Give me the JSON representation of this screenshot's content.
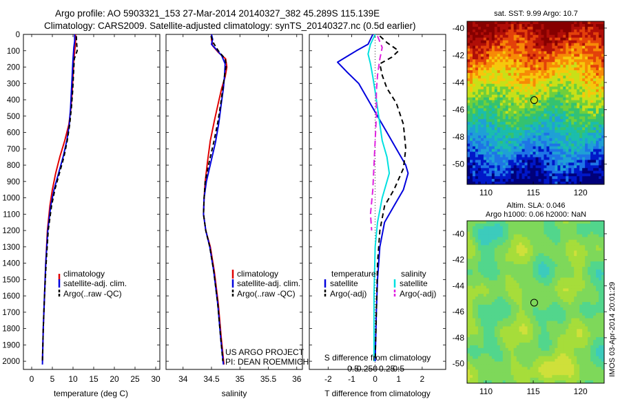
{
  "header": {
    "line1": "Argo profile: AO 5903321_153 27-Mar-2014 20140327_382 45.289S 115.139E",
    "line2": "Climatology: CARS2009. Satellite-adjusted climatology: synTS_20140327.nc (0.5d earlier)"
  },
  "depth_ticks": [
    "0",
    "100",
    "200",
    "300",
    "400",
    "500",
    "600",
    "700",
    "800",
    "900",
    "1000",
    "1100",
    "1200",
    "1300",
    "1400",
    "1500",
    "1600",
    "1700",
    "1800",
    "1900",
    "2000"
  ],
  "colors": {
    "climatology": "#e00000",
    "satellite": "#0000dd",
    "argo": "#000000",
    "s_satellite": "#00e0e0",
    "s_argo": "#e020e0"
  },
  "chart_data": [
    {
      "type": "line",
      "xlabel": "temperature (deg C)",
      "ylabel": "",
      "xlim": [
        -2,
        31
      ],
      "ylim": [
        0,
        2050
      ],
      "xticks": [
        0,
        5,
        10,
        15,
        20,
        25,
        30
      ],
      "xtick_labels": [
        "0",
        "5",
        "10",
        "15",
        "20",
        "25",
        "30"
      ],
      "legend": {
        "placement": "lower-left",
        "entries": [
          "climatology",
          "satellite-adj. clim.",
          "Argo(..raw -QC)"
        ]
      },
      "series": [
        {
          "name": "climatology",
          "color": "#e00000",
          "dash": "",
          "points": [
            [
              10.6,
              0
            ],
            [
              10.6,
              40
            ],
            [
              10.5,
              80
            ],
            [
              10.2,
              150
            ],
            [
              10.0,
              250
            ],
            [
              9.8,
              350
            ],
            [
              9.5,
              450
            ],
            [
              9.0,
              550
            ],
            [
              8.0,
              650
            ],
            [
              6.8,
              750
            ],
            [
              5.8,
              850
            ],
            [
              5.0,
              950
            ],
            [
              4.4,
              1050
            ],
            [
              3.8,
              1200
            ],
            [
              3.4,
              1400
            ],
            [
              3.1,
              1600
            ],
            [
              2.8,
              1800
            ],
            [
              2.6,
              2000
            ]
          ]
        },
        {
          "name": "satellite-adj. clim.",
          "color": "#0000dd",
          "dash": "",
          "points": [
            [
              10.4,
              0
            ],
            [
              10.4,
              40
            ],
            [
              10.2,
              80
            ],
            [
              10.0,
              150
            ],
            [
              9.8,
              250
            ],
            [
              9.6,
              350
            ],
            [
              9.4,
              450
            ],
            [
              9.1,
              550
            ],
            [
              8.5,
              650
            ],
            [
              7.6,
              750
            ],
            [
              6.5,
              850
            ],
            [
              5.4,
              950
            ],
            [
              4.6,
              1050
            ],
            [
              3.9,
              1200
            ],
            [
              3.4,
              1400
            ],
            [
              3.1,
              1600
            ],
            [
              2.8,
              1800
            ],
            [
              2.6,
              2020
            ]
          ]
        },
        {
          "name": "Argo(..raw -QC)",
          "color": "#000000",
          "dash": "6,4",
          "points": [
            [
              10.8,
              10
            ],
            [
              10.9,
              60
            ],
            [
              11.0,
              100
            ],
            [
              10.3,
              150
            ],
            [
              10.1,
              250
            ],
            [
              9.9,
              350
            ],
            [
              9.6,
              450
            ],
            [
              9.2,
              550
            ],
            [
              8.6,
              650
            ],
            [
              7.8,
              750
            ],
            [
              6.7,
              850
            ],
            [
              5.6,
              950
            ],
            [
              4.8,
              1050
            ],
            [
              4.0,
              1200
            ],
            [
              3.5,
              1400
            ],
            [
              3.1,
              1600
            ],
            [
              2.8,
              1800
            ],
            [
              2.6,
              2000
            ]
          ]
        }
      ]
    },
    {
      "type": "line",
      "xlabel": "salinity",
      "ylabel": "",
      "xlim": [
        33.7,
        36.1
      ],
      "ylim": [
        0,
        2050
      ],
      "xticks": [
        34,
        34.5,
        35,
        35.5,
        36
      ],
      "xtick_labels": [
        "34",
        "34.5",
        "35",
        "35.5",
        "36"
      ],
      "legend": {
        "placement": "lower-right",
        "entries": [
          "climatology",
          "satellite-adj. clim.",
          "Argo(..raw -QC)"
        ]
      },
      "annotation": [
        "US ARGO PROJECT",
        "PI: DEAN ROEMMICH"
      ],
      "series": [
        {
          "name": "climatology",
          "color": "#e00000",
          "dash": "",
          "points": [
            [
              34.5,
              0
            ],
            [
              34.5,
              30
            ],
            [
              34.52,
              70
            ],
            [
              34.62,
              110
            ],
            [
              34.75,
              150
            ],
            [
              34.77,
              200
            ],
            [
              34.74,
              260
            ],
            [
              34.68,
              330
            ],
            [
              34.62,
              420
            ],
            [
              34.55,
              530
            ],
            [
              34.48,
              650
            ],
            [
              34.43,
              780
            ],
            [
              34.39,
              900
            ],
            [
              34.37,
              1000
            ],
            [
              34.36,
              1100
            ],
            [
              34.4,
              1200
            ],
            [
              34.48,
              1300
            ],
            [
              34.55,
              1450
            ],
            [
              34.62,
              1650
            ],
            [
              34.67,
              1850
            ],
            [
              34.72,
              2020
            ]
          ]
        },
        {
          "name": "satellite-adj. clim.",
          "color": "#0000dd",
          "dash": "",
          "points": [
            [
              34.5,
              0
            ],
            [
              34.52,
              30
            ],
            [
              34.5,
              60
            ],
            [
              34.58,
              90
            ],
            [
              34.68,
              130
            ],
            [
              34.74,
              180
            ],
            [
              34.73,
              250
            ],
            [
              34.71,
              330
            ],
            [
              34.67,
              430
            ],
            [
              34.63,
              540
            ],
            [
              34.57,
              660
            ],
            [
              34.49,
              780
            ],
            [
              34.41,
              900
            ],
            [
              34.37,
              1000
            ],
            [
              34.36,
              1100
            ],
            [
              34.4,
              1200
            ],
            [
              34.47,
              1300
            ],
            [
              34.54,
              1450
            ],
            [
              34.61,
              1650
            ],
            [
              34.66,
              1850
            ],
            [
              34.71,
              2020
            ]
          ]
        },
        {
          "name": "Argo(..raw -QC)",
          "color": "#000000",
          "dash": "6,4",
          "points": [
            [
              34.49,
              10
            ],
            [
              34.53,
              50
            ],
            [
              34.62,
              100
            ],
            [
              34.74,
              150
            ],
            [
              34.76,
              190
            ],
            [
              34.73,
              250
            ],
            [
              34.7,
              330
            ],
            [
              34.66,
              430
            ],
            [
              34.61,
              540
            ],
            [
              34.54,
              660
            ],
            [
              34.46,
              780
            ],
            [
              34.39,
              900
            ],
            [
              34.37,
              1000
            ],
            [
              34.36,
              1100
            ],
            [
              34.4,
              1200
            ],
            [
              34.47,
              1300
            ],
            [
              34.54,
              1450
            ],
            [
              34.61,
              1650
            ],
            [
              34.66,
              1850
            ],
            [
              34.7,
              2000
            ]
          ]
        }
      ]
    },
    {
      "type": "line",
      "xlabel": "T difference from climatology",
      "xlabel2": "S difference from climatology",
      "ylabel": "",
      "xlim": [
        -2.8,
        3.0
      ],
      "ylim": [
        0,
        2050
      ],
      "xticks": [
        -2,
        -1,
        0,
        1,
        2
      ],
      "xtick_labels": [
        "-2",
        "-1",
        "0",
        "1",
        "2"
      ],
      "s_ticks": [
        "-0.5",
        "-0.25",
        "0",
        "0.25",
        "0.5"
      ],
      "legend": {
        "placement": "lower-center",
        "left_title": "temperature",
        "right_title": "salinity",
        "entries": [
          "satellite",
          "Argo(-adj)",
          "satellite",
          "Argo(-adj)"
        ]
      },
      "series": [
        {
          "name": "satellite",
          "group": "temperature",
          "color": "#0000dd",
          "dash": "",
          "points": [
            [
              -0.1,
              0
            ],
            [
              -0.3,
              60
            ],
            [
              -0.8,
              100
            ],
            [
              -1.6,
              170
            ],
            [
              -1.2,
              230
            ],
            [
              -0.7,
              300
            ],
            [
              -0.3,
              400
            ],
            [
              0.1,
              500
            ],
            [
              0.5,
              600
            ],
            [
              0.9,
              700
            ],
            [
              1.3,
              800
            ],
            [
              1.4,
              850
            ],
            [
              1.2,
              950
            ],
            [
              0.8,
              1050
            ],
            [
              0.4,
              1150
            ],
            [
              0.2,
              1300
            ],
            [
              0.1,
              1500
            ],
            [
              0.05,
              1700
            ],
            [
              0.0,
              2000
            ]
          ]
        },
        {
          "name": "Argo(-adj)",
          "group": "temperature",
          "color": "#000000",
          "dash": "7,5",
          "points": [
            [
              0.2,
              10
            ],
            [
              0.5,
              50
            ],
            [
              1.0,
              100
            ],
            [
              0.7,
              140
            ],
            [
              0.2,
              180
            ],
            [
              0.3,
              250
            ],
            [
              0.5,
              330
            ],
            [
              0.9,
              420
            ],
            [
              1.2,
              550
            ],
            [
              1.3,
              700
            ],
            [
              1.2,
              820
            ],
            [
              0.8,
              950
            ],
            [
              0.4,
              1050
            ],
            [
              0.2,
              1200
            ],
            [
              0.1,
              1400
            ],
            [
              0.05,
              1700
            ],
            [
              0.0,
              2000
            ]
          ]
        },
        {
          "name": "satellite",
          "group": "salinity",
          "color": "#00e0e0",
          "dash": "",
          "points": [
            [
              0.0,
              0
            ],
            [
              -0.2,
              60
            ],
            [
              -0.3,
              120
            ],
            [
              -0.2,
              180
            ],
            [
              -0.1,
              260
            ],
            [
              0.0,
              350
            ],
            [
              0.1,
              450
            ],
            [
              0.2,
              550
            ],
            [
              0.3,
              650
            ],
            [
              0.5,
              750
            ],
            [
              0.6,
              850
            ],
            [
              0.3,
              1000
            ],
            [
              0.1,
              1150
            ],
            [
              0.0,
              1300
            ],
            [
              -0.05,
              1600
            ],
            [
              -0.05,
              1800
            ],
            [
              -0.05,
              2000
            ]
          ]
        },
        {
          "name": "Argo(-adj)",
          "group": "salinity",
          "color": "#e020e0",
          "dash": "9,5",
          "points": [
            [
              0.1,
              10
            ],
            [
              0.3,
              80
            ],
            [
              0.2,
              150
            ],
            [
              0.1,
              250
            ],
            [
              0.05,
              350
            ],
            [
              0.05,
              500
            ],
            [
              0.0,
              650
            ],
            [
              -0.05,
              800
            ],
            [
              -0.1,
              950
            ],
            [
              -0.2,
              1100
            ],
            [
              -0.15,
              1200
            ]
          ]
        }
      ]
    },
    {
      "type": "heatmap",
      "title": "sat. SST: 9.99 Argo: 10.7",
      "xlim": [
        108,
        122.5
      ],
      "ylim": [
        -51.5,
        -39.5
      ],
      "xticks": [
        110,
        115,
        120
      ],
      "yticks": [
        -40,
        -42,
        -44,
        -46,
        -48,
        -50
      ],
      "xtick_labels": [
        "110",
        "115",
        "120"
      ],
      "ytick_labels": [
        "-40",
        "-42",
        "-44",
        "-46",
        "-48",
        "-50"
      ],
      "marker": [
        115.1,
        -45.3
      ],
      "palette": [
        "#00007a",
        "#0018c8",
        "#1e74e6",
        "#1fa0d6",
        "#1bbdac",
        "#34c270",
        "#6fcf3c",
        "#c8e018",
        "#f6c80c",
        "#f78a06",
        "#e3410a",
        "#b00e08",
        "#860000"
      ]
    },
    {
      "type": "heatmap",
      "title": "Altim. SLA: 0.046",
      "subtitle": "Argo h1000: 0.06 h2000: NaN",
      "xlim": [
        108,
        122.5
      ],
      "ylim": [
        -51.5,
        -39
      ],
      "xticks": [
        110,
        115,
        120
      ],
      "yticks": [
        -40,
        -42,
        -44,
        -46,
        -48,
        -50
      ],
      "xtick_labels": [
        "110",
        "115",
        "120"
      ],
      "ytick_labels": [
        "-40",
        "-42",
        "-44",
        "-46",
        "-48",
        "-50"
      ],
      "marker": [
        115.1,
        -45.3
      ],
      "palette": [
        "#2aa6c8",
        "#3ccbbc",
        "#52d68c",
        "#7ed85a",
        "#a6dd3a",
        "#cfe03a",
        "#f3d23c",
        "#f6a02c",
        "#f2662a"
      ]
    }
  ],
  "footer_stamp": "IMOS 03-Apr-2014 20:01:29"
}
